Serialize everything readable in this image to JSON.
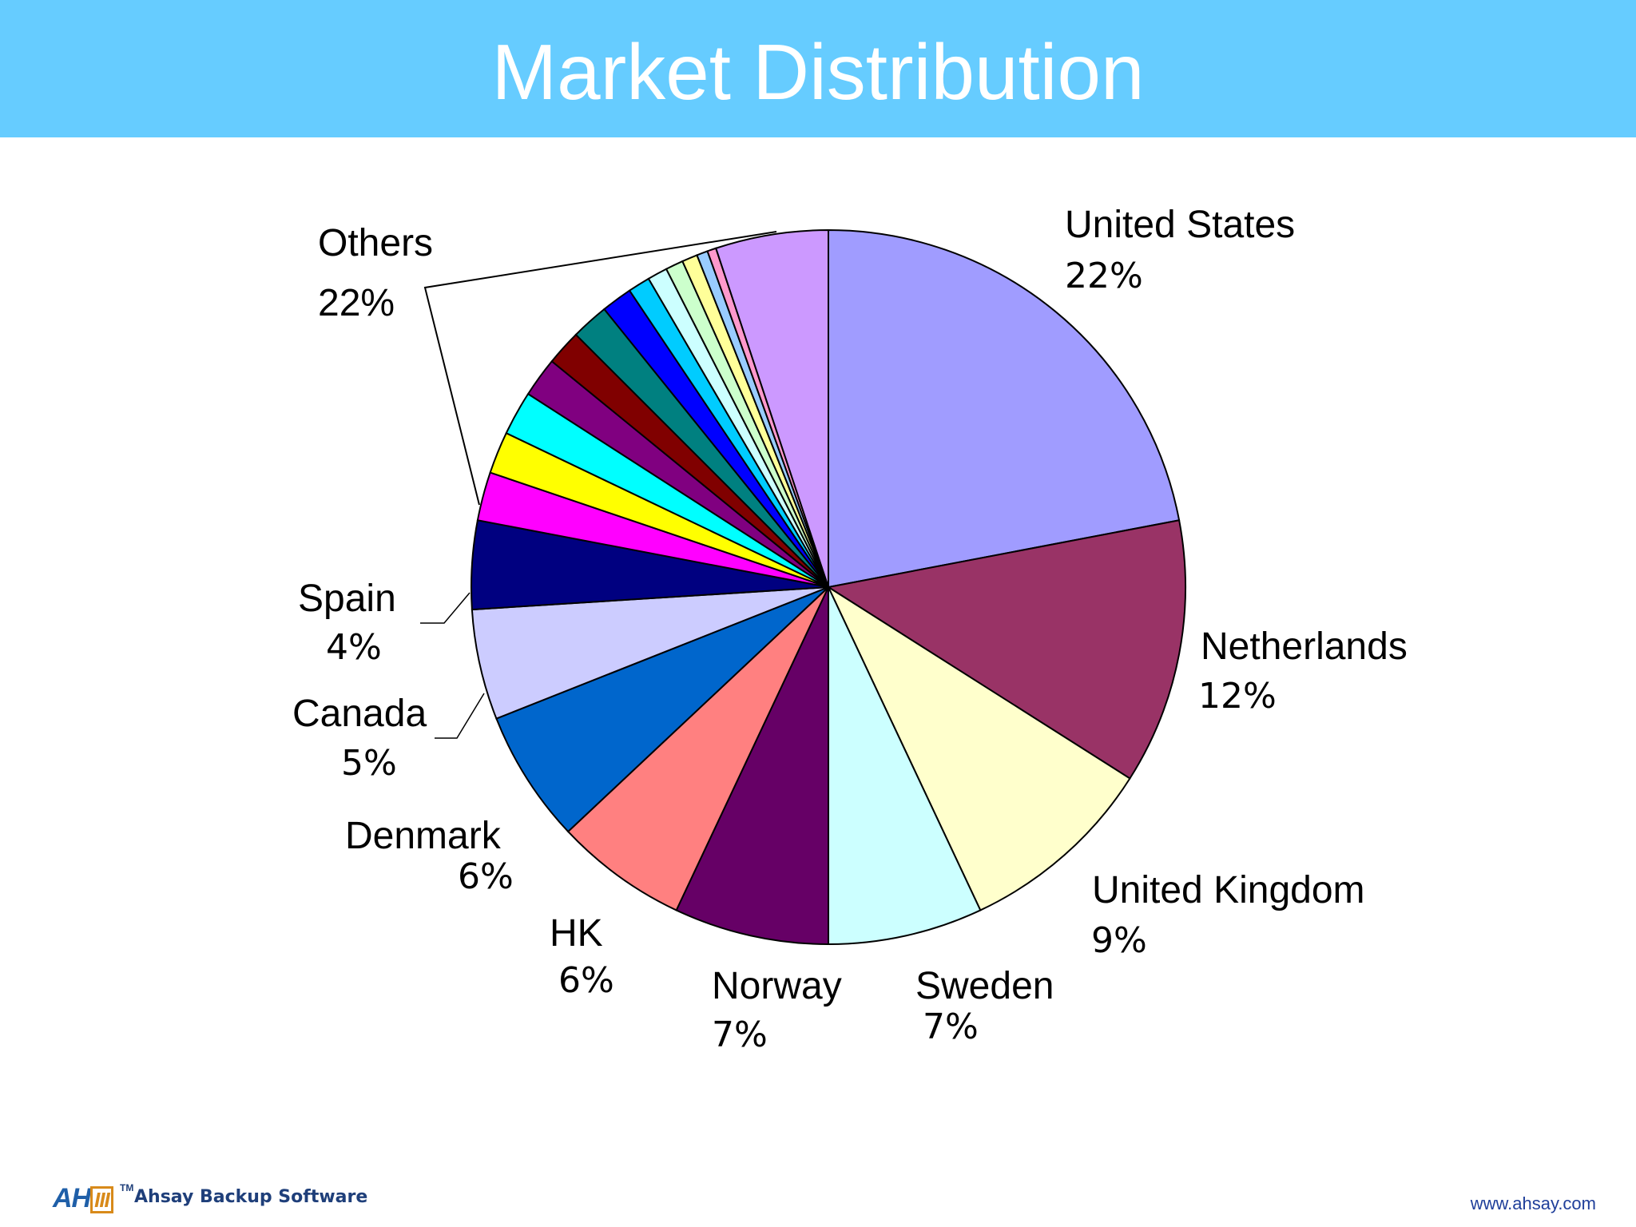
{
  "slide": {
    "title": "Market Distribution",
    "logo_mark": "AH",
    "logo_mark_box": "III",
    "logo_tm": "TM",
    "logo_text": "Ahsay Backup Software",
    "footer_url": "www.ahsay.com"
  },
  "chart_data": {
    "type": "pie",
    "title": "",
    "slices": [
      {
        "label": "United States",
        "pct_label": "22%",
        "value": 22,
        "color": "#a09cff"
      },
      {
        "label": "Netherlands",
        "pct_label": "12%",
        "value": 12,
        "color": "#993366"
      },
      {
        "label": "United Kingdom",
        "pct_label": "9%",
        "value": 9,
        "color": "#ffffcc"
      },
      {
        "label": "Sweden",
        "pct_label": "7%",
        "value": 7,
        "color": "#ccffff"
      },
      {
        "label": "Norway",
        "pct_label": "7%",
        "value": 7,
        "color": "#660066"
      },
      {
        "label": "HK",
        "pct_label": "6%",
        "value": 6,
        "color": "#ff8080"
      },
      {
        "label": "Denmark",
        "pct_label": "6%",
        "value": 6,
        "color": "#0066cc"
      },
      {
        "label": "Canada",
        "pct_label": "5%",
        "value": 5,
        "color": "#ccccff"
      },
      {
        "label": "Spain",
        "pct_label": "4%",
        "value": 4,
        "color": "#000080"
      },
      {
        "label": "Others",
        "pct_label": "22%",
        "value": 22,
        "color": "#cc99ff",
        "sub_slices": [
          {
            "value": 2.2,
            "color": "#ff00ff"
          },
          {
            "value": 1.9,
            "color": "#ffff00"
          },
          {
            "value": 2.0,
            "color": "#00ffff"
          },
          {
            "value": 1.8,
            "color": "#800080"
          },
          {
            "value": 1.6,
            "color": "#800000"
          },
          {
            "value": 1.7,
            "color": "#008080"
          },
          {
            "value": 1.4,
            "color": "#0000ff"
          },
          {
            "value": 1.0,
            "color": "#00ccff"
          },
          {
            "value": 0.9,
            "color": "#ccffff"
          },
          {
            "value": 0.8,
            "color": "#ccffcc"
          },
          {
            "value": 0.7,
            "color": "#ffff99"
          },
          {
            "value": 0.5,
            "color": "#99ccff"
          },
          {
            "value": 0.4,
            "color": "#ff99cc"
          },
          {
            "value": 5.1,
            "color": "#cc99ff"
          }
        ]
      }
    ],
    "start_angle_deg": 0,
    "direction": "clockwise"
  }
}
